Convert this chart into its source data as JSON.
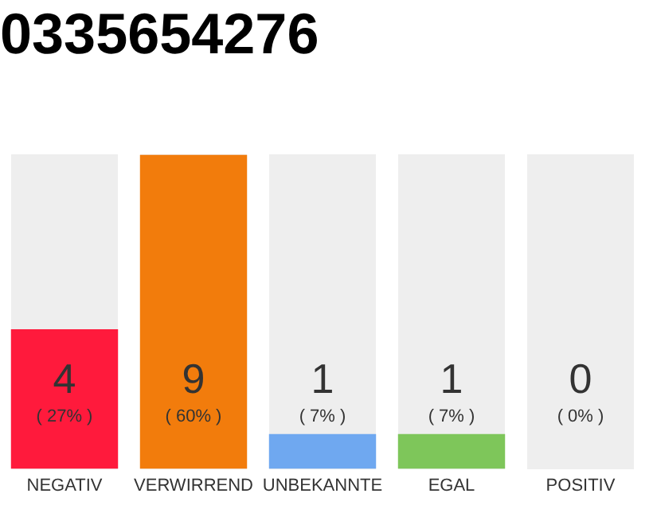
{
  "chart_data": {
    "type": "bar",
    "title": "0335654276",
    "categories": [
      "NEGATIV",
      "VERWIRREND",
      "UNBEKANNTE",
      "EGAL",
      "POSITIV"
    ],
    "values": [
      4,
      9,
      1,
      1,
      0
    ],
    "colors": [
      "#ff1a3c",
      "#f27c0c",
      "#6fa8f0",
      "#7ec65a",
      "#cccccc"
    ],
    "value_labels": [
      "4\n( 27% )",
      "9\n( 60% )",
      "1\n( 7% )",
      "1\n( 7% )",
      "0\n( 0% )"
    ],
    "tick_labels": "x",
    "grid": false,
    "legend": false
  }
}
